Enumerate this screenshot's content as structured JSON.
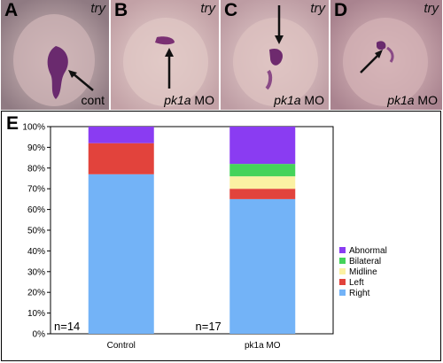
{
  "panels": [
    {
      "label": "A",
      "gene": "try",
      "condition_plain": "cont",
      "condition_italic": ""
    },
    {
      "label": "B",
      "gene": "try",
      "condition_plain": " MO",
      "condition_italic": "pk1a"
    },
    {
      "label": "C",
      "gene": "try",
      "condition_plain": " MO",
      "condition_italic": "pk1a"
    },
    {
      "label": "D",
      "gene": "try",
      "condition_plain": " MO",
      "condition_italic": "pk1a"
    }
  ],
  "panel_e_label": "E",
  "colors": {
    "Right": "#73b3f7",
    "Left": "#e2433c",
    "Midline": "#fbf1a3",
    "Bilateral": "#45d35a",
    "Abnormal": "#8a3cf2",
    "frame": "#000000"
  },
  "chart_data": {
    "type": "bar",
    "stacked": true,
    "categories": [
      "Control",
      "pk1a MO"
    ],
    "n_labels": [
      "n=14",
      "n=17"
    ],
    "series": [
      {
        "name": "Right",
        "values": [
          77,
          65
        ]
      },
      {
        "name": "Left",
        "values": [
          15,
          5
        ]
      },
      {
        "name": "Midline",
        "values": [
          0,
          6
        ]
      },
      {
        "name": "Bilateral",
        "values": [
          0,
          6
        ]
      },
      {
        "name": "Abnormal",
        "values": [
          8,
          18
        ]
      }
    ],
    "legend_order": [
      "Abnormal",
      "Bilateral",
      "Midline",
      "Left",
      "Right"
    ],
    "yticks": [
      "0%",
      "10%",
      "20%",
      "30%",
      "40%",
      "50%",
      "60%",
      "70%",
      "80%",
      "90%",
      "100%"
    ],
    "ylim": [
      0,
      100
    ],
    "legend_position": "right",
    "grid": false
  }
}
